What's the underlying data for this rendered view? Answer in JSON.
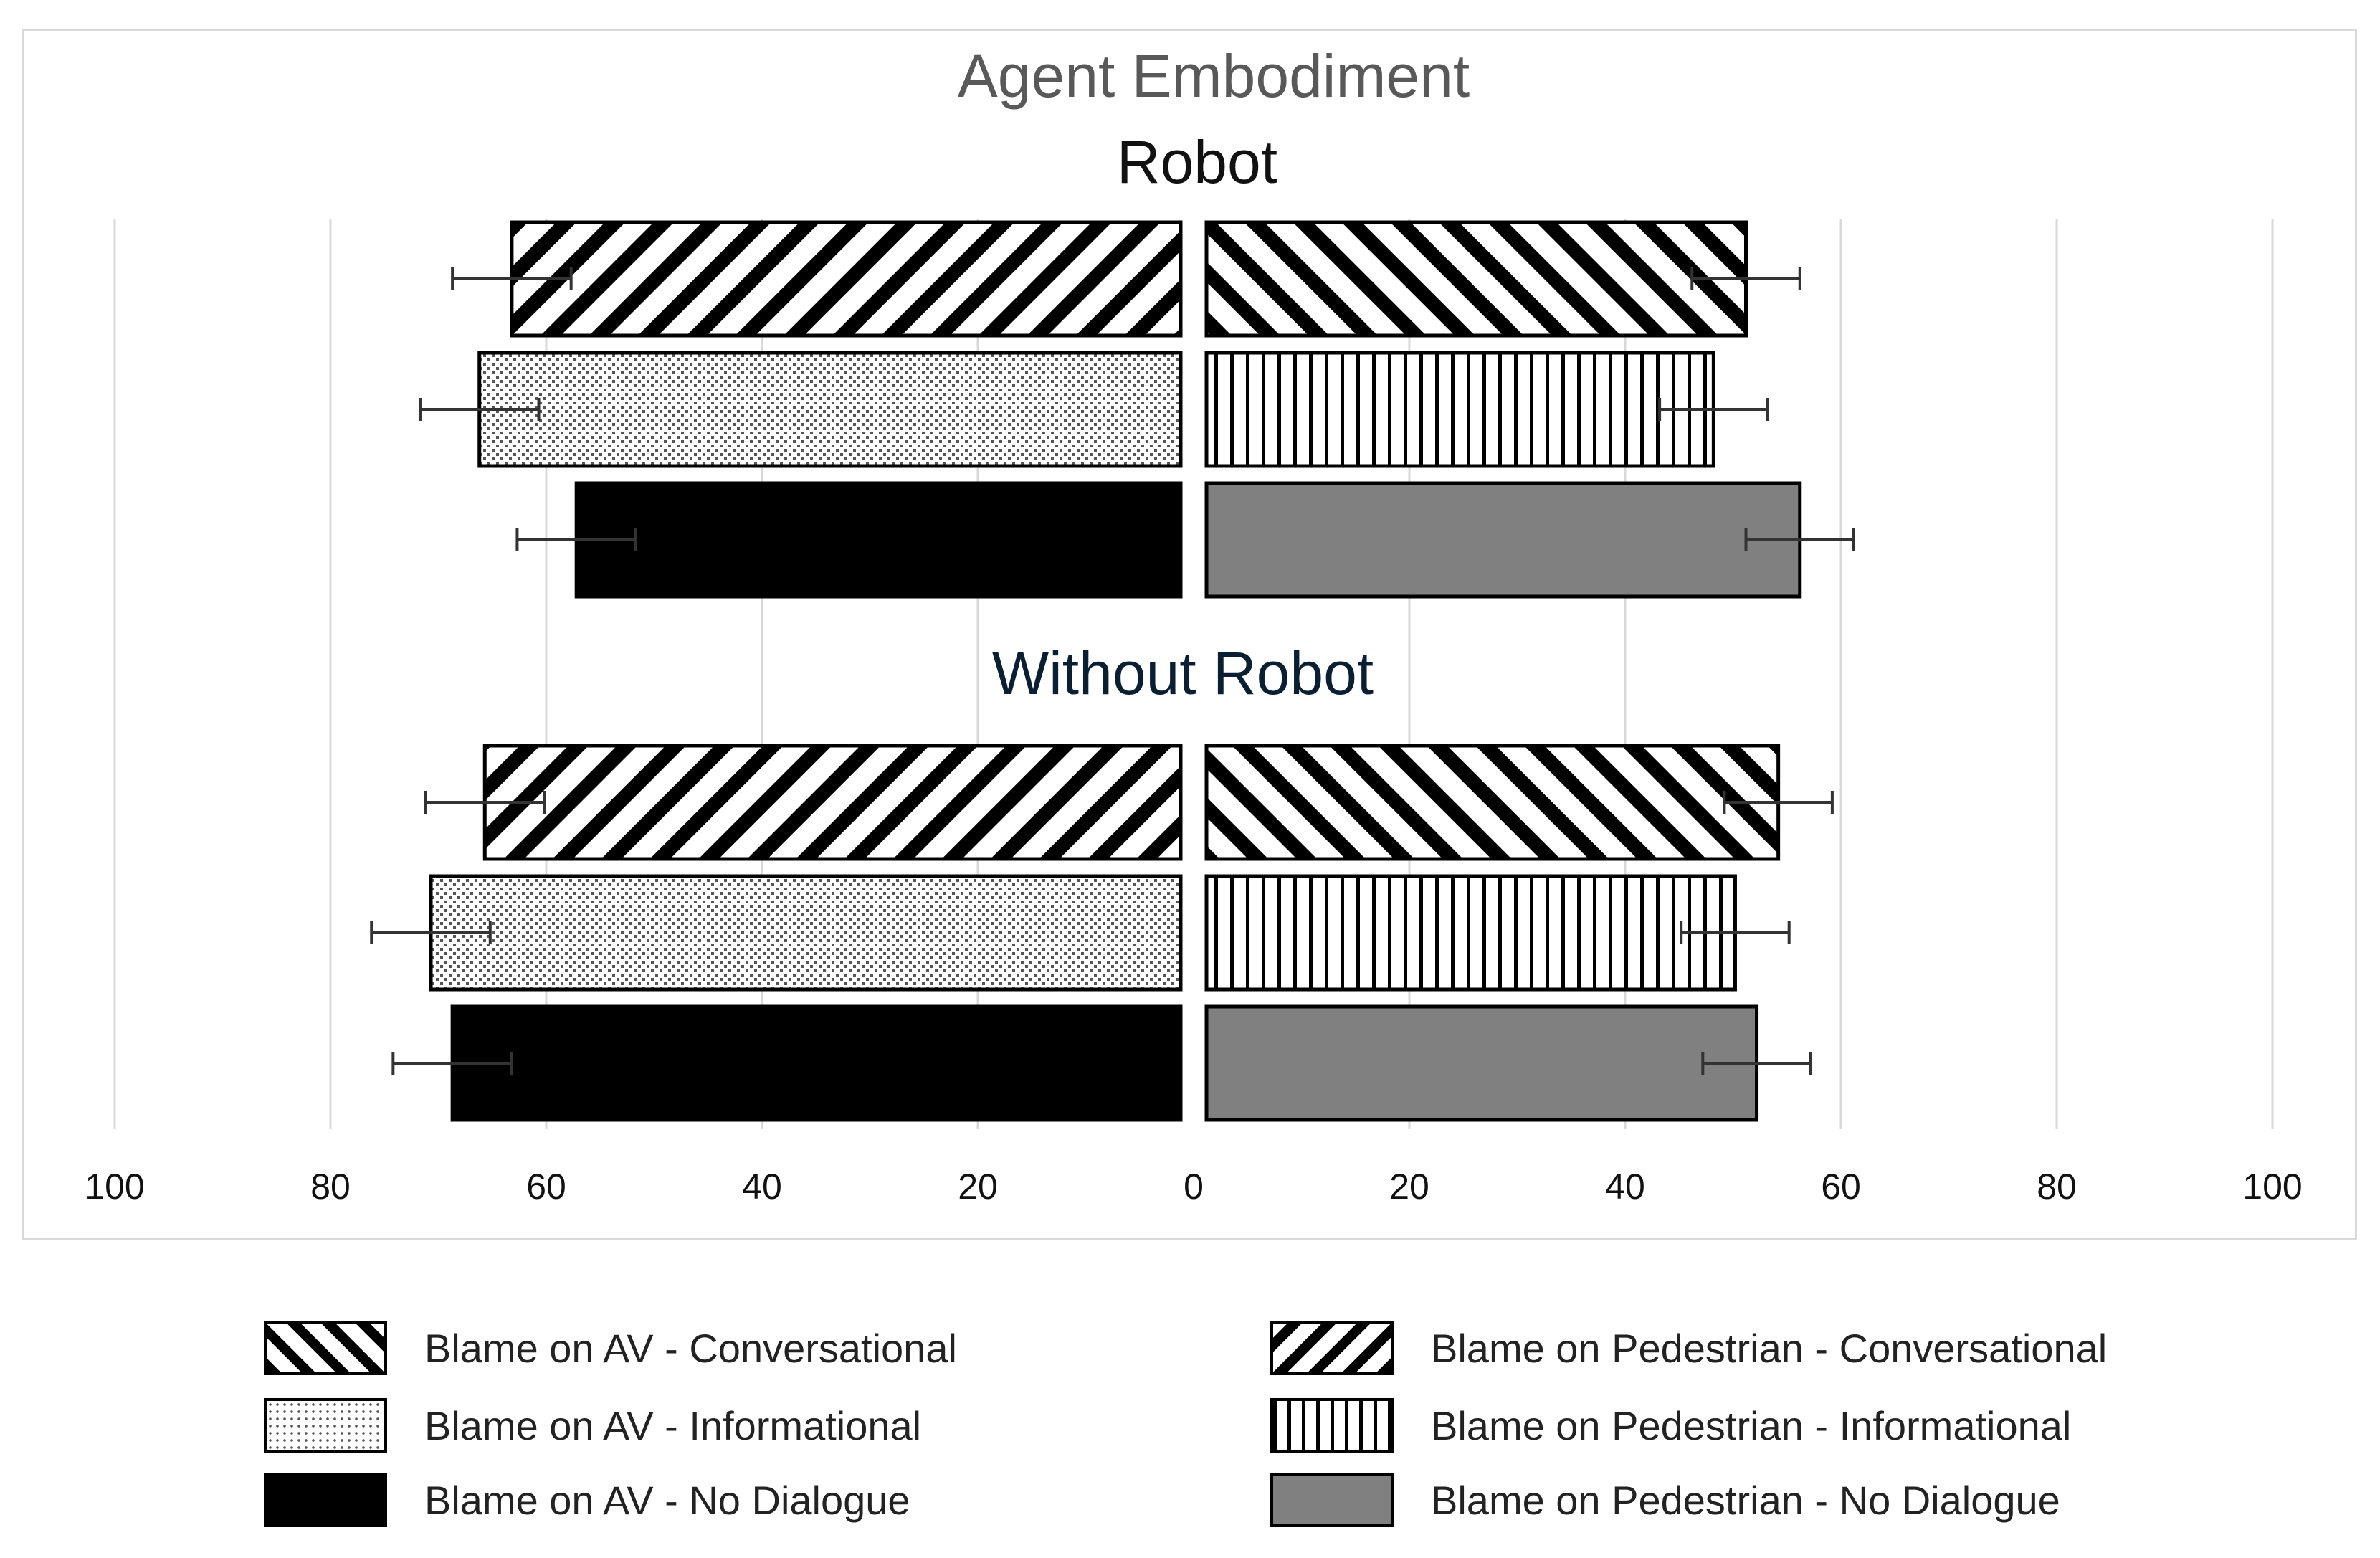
{
  "chart_data": {
    "type": "bar",
    "title": "Agent Embodiment",
    "orientation": "horizontal-diverging",
    "panels": [
      {
        "name": "Robot",
        "bars": [
          {
            "series": "Blame on AV - Conversational",
            "value": 62,
            "error": 5.5
          },
          {
            "series": "Blame on AV - Informational",
            "value": 65,
            "error": 5.5
          },
          {
            "series": "Blame on AV - No Dialogue",
            "value": 56,
            "error": 5.5
          },
          {
            "series": "Blame on Pedestrian - Conversational",
            "value": 50,
            "error": 5
          },
          {
            "series": "Blame on Pedestrian - Informational",
            "value": 47,
            "error": 5
          },
          {
            "series": "Blame on Pedestrian - No Dialogue",
            "value": 55,
            "error": 5
          }
        ]
      },
      {
        "name": "Without Robot",
        "bars": [
          {
            "series": "Blame on AV - Conversational",
            "value": 64.5,
            "error": 5.5
          },
          {
            "series": "Blame on AV - Informational",
            "value": 69.5,
            "error": 5.5
          },
          {
            "series": "Blame on AV - No Dialogue",
            "value": 67.5,
            "error": 5.5
          },
          {
            "series": "Blame on Pedestrian - Conversational",
            "value": 53,
            "error": 5
          },
          {
            "series": "Blame on Pedestrian - Informational",
            "value": 49,
            "error": 5
          },
          {
            "series": "Blame on Pedestrian - No Dialogue",
            "value": 51,
            "error": 5
          }
        ]
      }
    ],
    "xlim": [
      -100,
      100
    ],
    "x_tick_labels": [
      "100",
      "80",
      "60",
      "40",
      "20",
      "0",
      "20",
      "40",
      "60",
      "80",
      "100"
    ],
    "grid": true,
    "legend_position": "bottom",
    "legend": [
      {
        "label": "Blame on AV - Conversational",
        "pattern": "diagonal-back"
      },
      {
        "label": "Blame on Pedestrian - Conversational",
        "pattern": "diagonal-forward"
      },
      {
        "label": "Blame on AV - Informational",
        "pattern": "dots"
      },
      {
        "label": "Blame on Pedestrian - Informational",
        "pattern": "vertical-lines"
      },
      {
        "label": "Blame on AV - No Dialogue",
        "pattern": "solid-black"
      },
      {
        "label": "Blame on Pedestrian - No Dialogue",
        "pattern": "solid-gray"
      }
    ],
    "colors": {
      "black": "#000000",
      "gray": "#808080",
      "grid": "#d9d9d9",
      "title": "#595959",
      "panel_title_alt": "#0b1f33"
    }
  }
}
